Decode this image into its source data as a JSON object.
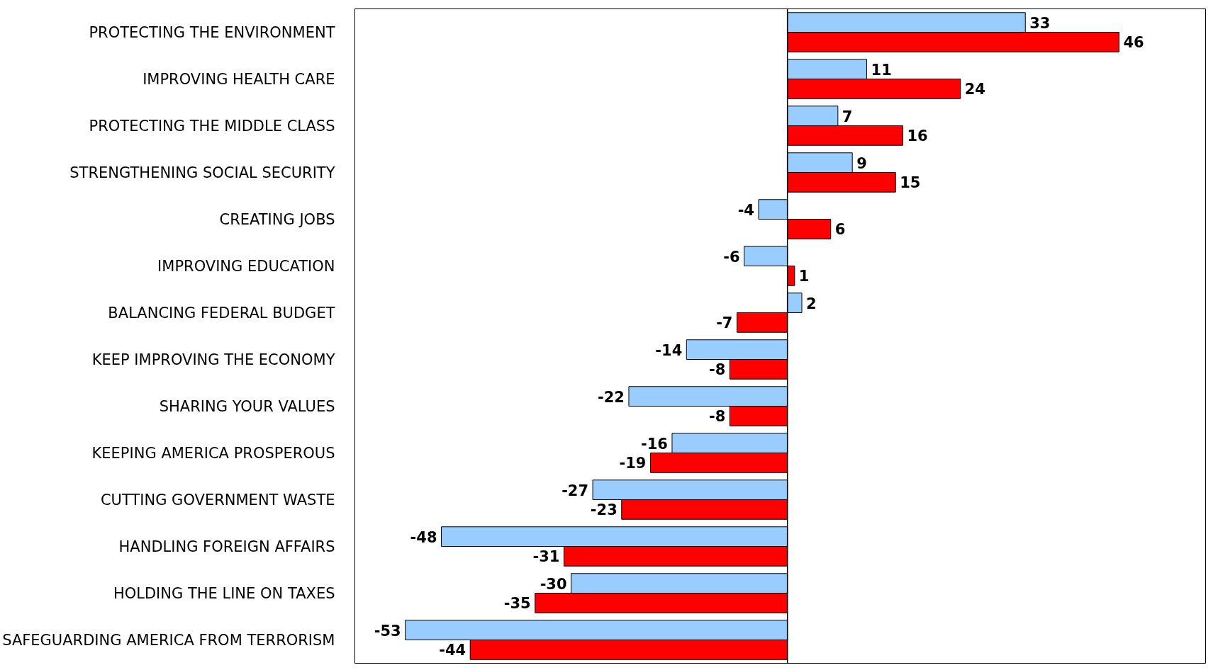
{
  "chart_data": {
    "type": "bar",
    "orientation": "horizontal",
    "categories": [
      "PROTECTING THE ENVIRONMENT",
      "IMPROVING HEALTH CARE",
      "PROTECTING THE MIDDLE CLASS",
      "STRENGTHENING SOCIAL SECURITY",
      "CREATING JOBS",
      "IMPROVING EDUCATION",
      "BALANCING FEDERAL BUDGET",
      "KEEP IMPROVING THE ECONOMY",
      "SHARING YOUR VALUES",
      "KEEPING AMERICA PROSPEROUS",
      "CUTTING GOVERNMENT WASTE",
      "HANDLING FOREIGN AFFAIRS",
      "HOLDING THE LINE ON TAXES",
      "SAFEGUARDING AMERICA FROM TERRORISM"
    ],
    "series": [
      {
        "color": "#99ccff",
        "values": [
          33,
          11,
          7,
          9,
          -4,
          -6,
          2,
          -14,
          -22,
          -16,
          -27,
          -48,
          -30,
          -53
        ]
      },
      {
        "color": "#ff0000",
        "values": [
          46,
          24,
          16,
          15,
          6,
          1,
          -7,
          -8,
          -8,
          -19,
          -23,
          -31,
          -35,
          -44
        ]
      }
    ],
    "xlim": [
      -60,
      58
    ],
    "tick_labels": "y",
    "data_labels": true,
    "grid": false
  }
}
